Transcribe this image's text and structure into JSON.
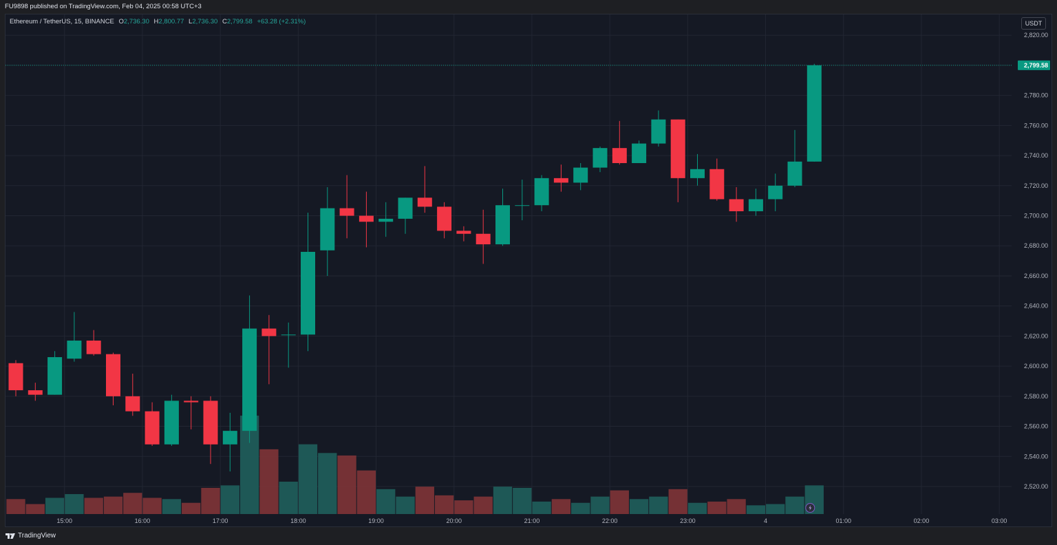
{
  "header": {
    "publish_text": "FU9898 published on TradingView.com, Feb 04, 2025 00:58 UTC+3"
  },
  "legend": {
    "symbol": "Ethereum / TetherUS, 15, BINANCE",
    "open_key": "O",
    "open": "2,736.30",
    "high_key": "H",
    "high": "2,800.77",
    "low_key": "L",
    "low": "2,736.30",
    "close_key": "C",
    "close": "2,799.58",
    "change": "+63.28 (+2.31%)"
  },
  "currency_button": "USDT",
  "last_price_label": "2,799.58",
  "footer": {
    "brand": "TradingView"
  },
  "colors": {
    "up": "#089981",
    "down": "#f23645",
    "bg": "#151924",
    "grid": "#222632"
  },
  "chart_data": {
    "type": "candlestick",
    "timeframe": "15",
    "y_range": [
      2500,
      2830
    ],
    "y_ticks": [
      2520,
      2540,
      2560,
      2580,
      2600,
      2620,
      2640,
      2660,
      2680,
      2700,
      2720,
      2740,
      2760,
      2780,
      2800,
      2820
    ],
    "y_tick_labels": [
      "2,520.00",
      "2,540.00",
      "2,560.00",
      "2,580.00",
      "2,600.00",
      "2,620.00",
      "2,640.00",
      "2,660.00",
      "2,680.00",
      "2,700.00",
      "2,720.00",
      "2,740.00",
      "2,760.00",
      "2,780.00",
      "2,800.00",
      "2,820.00"
    ],
    "x_ticks": [
      {
        "label": "15:00",
        "index": 2.5
      },
      {
        "label": "16:00",
        "index": 6.5
      },
      {
        "label": "17:00",
        "index": 10.5
      },
      {
        "label": "18:00",
        "index": 14.5
      },
      {
        "label": "19:00",
        "index": 18.5
      },
      {
        "label": "20:00",
        "index": 22.5
      },
      {
        "label": "21:00",
        "index": 26.5
      },
      {
        "label": "22:00",
        "index": 30.5
      },
      {
        "label": "23:00",
        "index": 34.5
      },
      {
        "label": "4",
        "index": 38.5
      },
      {
        "label": "01:00",
        "index": 42.5
      },
      {
        "label": "02:00",
        "index": 46.5
      },
      {
        "label": "03:00",
        "index": 50.5
      }
    ],
    "candles": [
      {
        "o": 2602,
        "h": 2604,
        "l": 2580,
        "c": 2584,
        "v": 0.12
      },
      {
        "o": 2584,
        "h": 2589,
        "l": 2577,
        "c": 2581,
        "v": 0.08
      },
      {
        "o": 2581,
        "h": 2610,
        "l": 2581,
        "c": 2606,
        "v": 0.13
      },
      {
        "o": 2605,
        "h": 2636,
        "l": 2603,
        "c": 2617,
        "v": 0.16
      },
      {
        "o": 2617,
        "h": 2624,
        "l": 2607,
        "c": 2608,
        "v": 0.13
      },
      {
        "o": 2608,
        "h": 2609,
        "l": 2574,
        "c": 2580,
        "v": 0.14
      },
      {
        "o": 2580,
        "h": 2595,
        "l": 2567,
        "c": 2570,
        "v": 0.17
      },
      {
        "o": 2570,
        "h": 2576,
        "l": 2547,
        "c": 2548,
        "v": 0.13
      },
      {
        "o": 2548,
        "h": 2581,
        "l": 2547,
        "c": 2577,
        "v": 0.12
      },
      {
        "o": 2577,
        "h": 2580,
        "l": 2558,
        "c": 2576,
        "v": 0.09
      },
      {
        "o": 2577,
        "h": 2580,
        "l": 2535,
        "c": 2548,
        "v": 0.21
      },
      {
        "o": 2548,
        "h": 2569,
        "l": 2530,
        "c": 2557,
        "v": 0.23
      },
      {
        "o": 2557,
        "h": 2647,
        "l": 2549,
        "c": 2625,
        "v": 0.79
      },
      {
        "o": 2625,
        "h": 2634,
        "l": 2588,
        "c": 2620,
        "v": 0.52
      },
      {
        "o": 2621,
        "h": 2629,
        "l": 2599,
        "c": 2621,
        "v": 0.26
      },
      {
        "o": 2621,
        "h": 2702,
        "l": 2610,
        "c": 2676,
        "v": 0.56
      },
      {
        "o": 2677,
        "h": 2719,
        "l": 2660,
        "c": 2705,
        "v": 0.49
      },
      {
        "o": 2705,
        "h": 2727,
        "l": 2685,
        "c": 2700,
        "v": 0.47
      },
      {
        "o": 2700,
        "h": 2716,
        "l": 2679,
        "c": 2696,
        "v": 0.35
      },
      {
        "o": 2696,
        "h": 2709,
        "l": 2686,
        "c": 2698,
        "v": 0.2
      },
      {
        "o": 2698,
        "h": 2712,
        "l": 2688,
        "c": 2712,
        "v": 0.14
      },
      {
        "o": 2712,
        "h": 2733,
        "l": 2702,
        "c": 2706,
        "v": 0.22
      },
      {
        "o": 2706,
        "h": 2709,
        "l": 2685,
        "c": 2690,
        "v": 0.15
      },
      {
        "o": 2690,
        "h": 2693,
        "l": 2683,
        "c": 2688,
        "v": 0.11
      },
      {
        "o": 2688,
        "h": 2704,
        "l": 2668,
        "c": 2681,
        "v": 0.14
      },
      {
        "o": 2681,
        "h": 2718,
        "l": 2680,
        "c": 2707,
        "v": 0.22
      },
      {
        "o": 2707,
        "h": 2724,
        "l": 2697,
        "c": 2707,
        "v": 0.21
      },
      {
        "o": 2707,
        "h": 2727,
        "l": 2703,
        "c": 2725,
        "v": 0.1
      },
      {
        "o": 2725,
        "h": 2734,
        "l": 2716,
        "c": 2722,
        "v": 0.12
      },
      {
        "o": 2722,
        "h": 2735,
        "l": 2717,
        "c": 2732,
        "v": 0.09
      },
      {
        "o": 2732,
        "h": 2746,
        "l": 2729,
        "c": 2745,
        "v": 0.14
      },
      {
        "o": 2745,
        "h": 2763,
        "l": 2734,
        "c": 2735,
        "v": 0.19
      },
      {
        "o": 2735,
        "h": 2750,
        "l": 2735,
        "c": 2748,
        "v": 0.12
      },
      {
        "o": 2748,
        "h": 2770,
        "l": 2746,
        "c": 2764,
        "v": 0.14
      },
      {
        "o": 2764,
        "h": 2764,
        "l": 2709,
        "c": 2725,
        "v": 0.2
      },
      {
        "o": 2725,
        "h": 2741,
        "l": 2720,
        "c": 2731,
        "v": 0.09
      },
      {
        "o": 2731,
        "h": 2738,
        "l": 2710,
        "c": 2711,
        "v": 0.1
      },
      {
        "o": 2711,
        "h": 2719,
        "l": 2696,
        "c": 2703,
        "v": 0.12
      },
      {
        "o": 2703,
        "h": 2718,
        "l": 2700,
        "c": 2711,
        "v": 0.07
      },
      {
        "o": 2711,
        "h": 2728,
        "l": 2703,
        "c": 2720,
        "v": 0.08
      },
      {
        "o": 2720,
        "h": 2757,
        "l": 2719,
        "c": 2736,
        "v": 0.14
      },
      {
        "o": 2736,
        "h": 2801,
        "l": 2736,
        "c": 2800,
        "v": 0.23
      }
    ]
  }
}
